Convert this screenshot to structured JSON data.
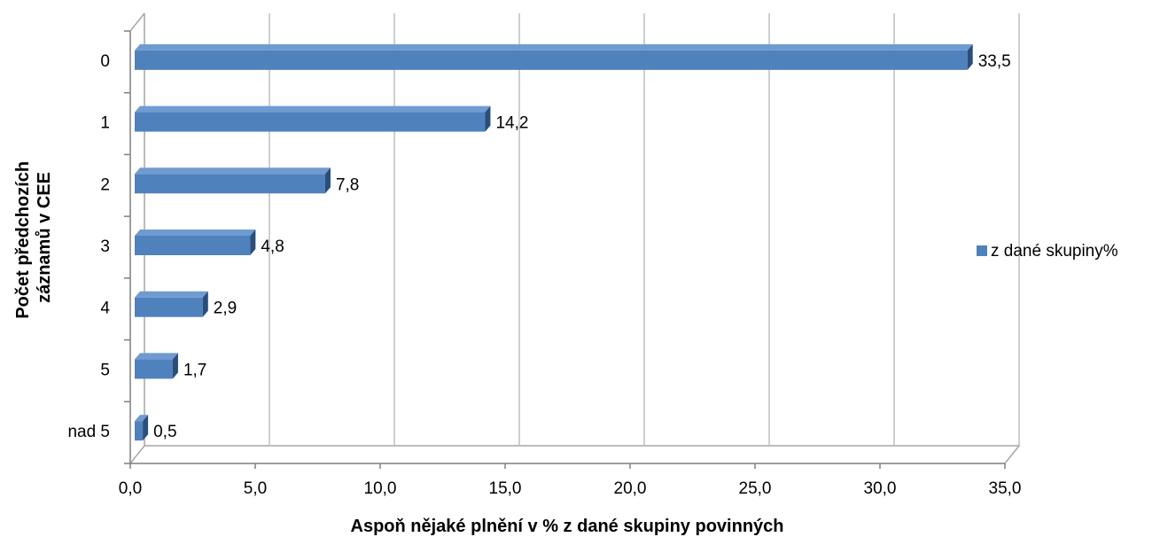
{
  "chart_data": {
    "type": "bar",
    "orientation": "horizontal",
    "title": "",
    "xlabel": "Aspoň nějaké plnění v % z dané skupiny povinných",
    "ylabel": "Počet předchozích záznamů v CEE",
    "categories": [
      "0",
      "1",
      "2",
      "3",
      "4",
      "5",
      "nad 5"
    ],
    "series": [
      {
        "name": "z dané skupiny%",
        "values": [
          33.5,
          14.2,
          7.8,
          4.8,
          2.9,
          1.7,
          0.5
        ],
        "labels": [
          "33,5",
          "14,2",
          "7,8",
          "4,8",
          "2,9",
          "1,7",
          "0,5"
        ],
        "color": "#4F81BD"
      }
    ],
    "x_ticks": [
      "0,0",
      "5,0",
      "10,0",
      "15,0",
      "20,0",
      "25,0",
      "30,0",
      "35,0"
    ],
    "xlim": [
      0,
      35
    ],
    "grid": "vertical",
    "legend": "right",
    "style": "3d"
  }
}
